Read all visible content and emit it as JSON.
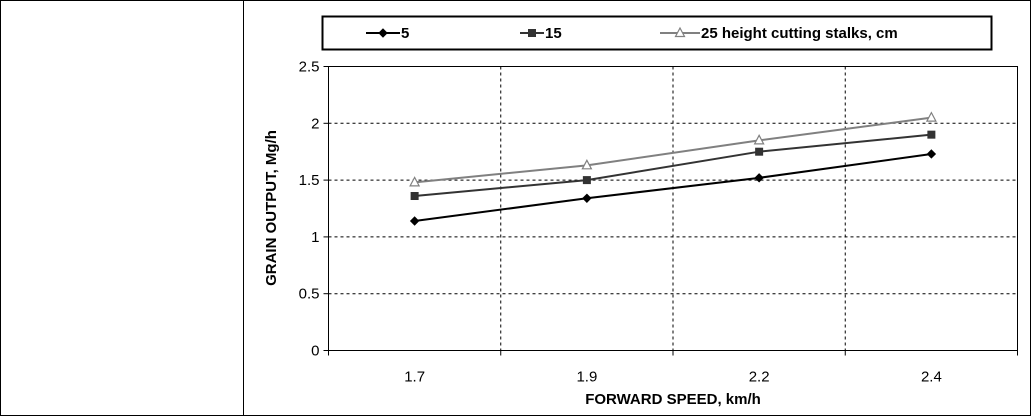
{
  "chart_data": {
    "type": "line",
    "categories": [
      "1.7",
      "1.9",
      "2.2",
      "2.4"
    ],
    "series": [
      {
        "name": "5",
        "values": [
          1.14,
          1.34,
          1.52,
          1.73
        ],
        "color": "#000000",
        "marker": "diamond"
      },
      {
        "name": "15",
        "values": [
          1.36,
          1.5,
          1.75,
          1.9
        ],
        "color": "#333333",
        "marker": "square"
      },
      {
        "name": "25 height cutting stalks, cm",
        "values": [
          1.48,
          1.63,
          1.85,
          2.05
        ],
        "color": "#808080",
        "marker": "triangle"
      }
    ],
    "xlabel": "FORWARD SPEED, km/h",
    "ylabel": "GRAIN OUTPUT, Mg/h",
    "ylim": [
      0,
      2.5
    ],
    "yticks": [
      "0",
      "0.5",
      "1",
      "1.5",
      "2",
      "2.5"
    ],
    "grid": true,
    "legend_position": "top"
  }
}
